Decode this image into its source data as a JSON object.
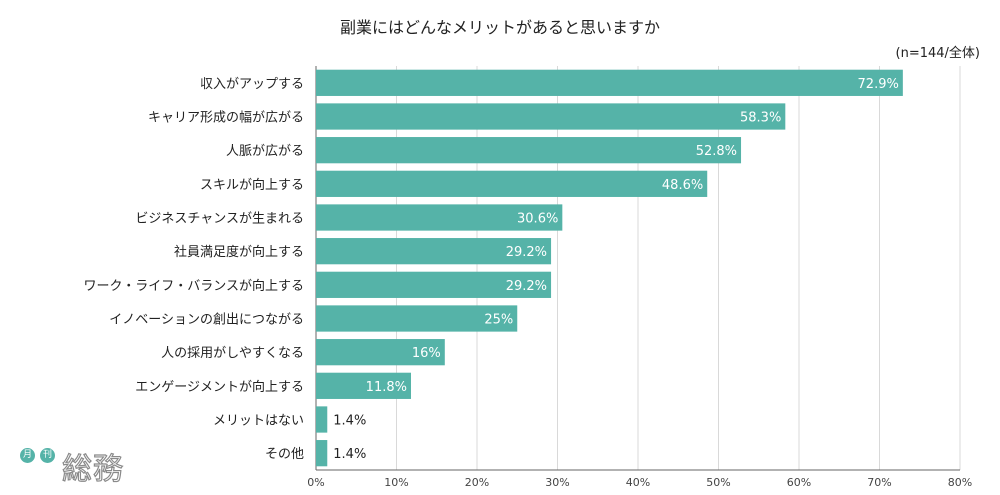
{
  "title": "副業にはどんなメリットがあると思いますか",
  "sample_note": "(n=144/全体)",
  "colors": {
    "bar": "#55b3a8",
    "grid": "#d9d9d9",
    "axis": "#666666"
  },
  "logo": {
    "badge_left": "月",
    "badge_right": "刊",
    "wordmark": "総務"
  },
  "chart_data": {
    "type": "bar",
    "orientation": "horizontal",
    "title": "副業にはどんなメリットがあると思いますか",
    "categories": [
      "収入がアップする",
      "キャリア形成の幅が広がる",
      "人脈が広がる",
      "スキルが向上する",
      "ビジネスチャンスが生まれる",
      "社員満足度が向上する",
      "ワーク・ライフ・バランスが向上する",
      "イノベーションの創出につながる",
      "人の採用がしやすくなる",
      "エンゲージメントが向上する",
      "メリットはない",
      "その他"
    ],
    "values": [
      72.9,
      58.3,
      52.8,
      48.6,
      30.6,
      29.2,
      29.2,
      25,
      16,
      11.8,
      1.4,
      1.4
    ],
    "value_labels": [
      "72.9%",
      "58.3%",
      "52.8%",
      "48.6%",
      "30.6%",
      "29.2%",
      "29.2%",
      "25%",
      "16%",
      "11.8%",
      "1.4%",
      "1.4%"
    ],
    "xlim": [
      0,
      80
    ],
    "x_ticks": [
      "0%",
      "10%",
      "20%",
      "30%",
      "40%",
      "50%",
      "60%",
      "70%",
      "80%"
    ],
    "grid": true
  }
}
